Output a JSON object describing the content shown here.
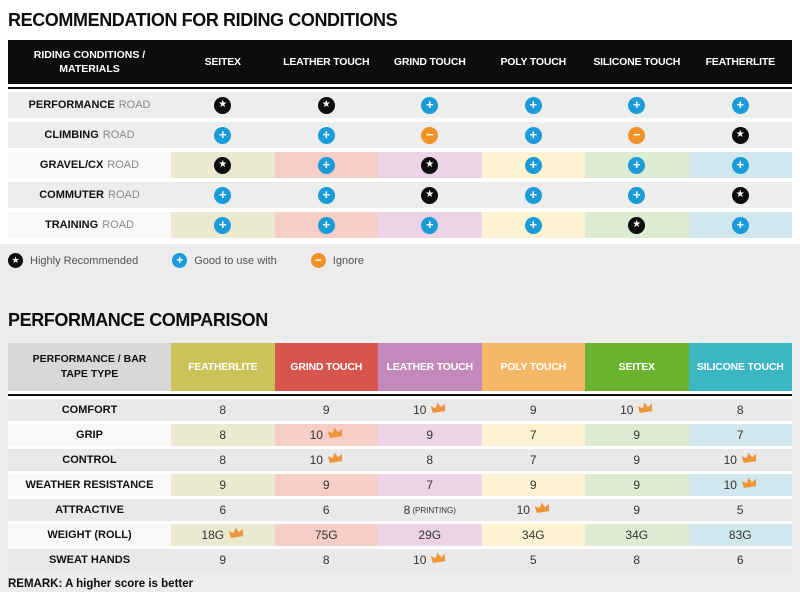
{
  "titles": {
    "section1": "RECOMMENDATION FOR RIDING CONDITIONS",
    "section2": "PERFORMANCE COMPARISON"
  },
  "legend": {
    "items": [
      {
        "icon": "star-badge",
        "label": "Highly Recommended"
      },
      {
        "icon": "plus-badge",
        "label": "Good to use with"
      },
      {
        "icon": "minus-badge",
        "label": "Ignore"
      }
    ]
  },
  "style": {
    "tint_palette": [
      "#ebe9cf",
      "#f6cec7",
      "#edd3e8",
      "#fdf3d1",
      "#dbecd2",
      "#d0e8ed"
    ],
    "tinted_label_bg": "#f8f8f8",
    "riding_gray_row_bg": "#ededed",
    "perf_gray_row_bg": "#e9e9e9",
    "perf_header_colors": [
      "#cbc258",
      "#d6554c",
      "#c389bb",
      "#f6b766",
      "#6bb32e",
      "#3bb6c3"
    ],
    "badge_colors": {
      "star": "#0d0d0d",
      "plus": "#1b9cd8",
      "minus": "#ef9227"
    },
    "crown_color": "#f0943c",
    "riding_tinted_rows": [
      2,
      4
    ],
    "perf_tinted_rows": [
      1,
      3,
      5
    ]
  },
  "chart_data": [
    {
      "type": "table",
      "title": "RECOMMENDATION FOR RIDING CONDITIONS",
      "corner_label": "RIDING CONDITIONS / MATERIALS",
      "columns": [
        "SEITEX",
        "LEATHER TOUCH",
        "GRIND TOUCH",
        "POLY TOUCH",
        "SILICONE TOUCH",
        "FEATHERLITE"
      ],
      "value_legend": {
        "star": "Highly Recommended",
        "plus": "Good to use with",
        "minus": "Ignore"
      },
      "rows": [
        {
          "label": "PERFORMANCE",
          "label_suffix": "ROAD",
          "values": [
            "star",
            "star",
            "plus",
            "plus",
            "plus",
            "plus"
          ]
        },
        {
          "label": "CLIMBING",
          "label_suffix": "ROAD",
          "values": [
            "plus",
            "plus",
            "minus",
            "plus",
            "minus",
            "star"
          ]
        },
        {
          "label": "GRAVEL/CX",
          "label_suffix": "ROAD",
          "values": [
            "star",
            "plus",
            "star",
            "plus",
            "plus",
            "plus"
          ]
        },
        {
          "label": "COMMUTER",
          "label_suffix": "ROAD",
          "values": [
            "plus",
            "plus",
            "star",
            "plus",
            "plus",
            "star"
          ]
        },
        {
          "label": "TRAINING",
          "label_suffix": "ROAD",
          "values": [
            "plus",
            "plus",
            "plus",
            "plus",
            "star",
            "plus"
          ]
        }
      ]
    },
    {
      "type": "table",
      "title": "PERFORMANCE COMPARISON",
      "corner_label": "PERFORMANCE / BAR TAPE TYPE",
      "columns": [
        "FEATHERLITE",
        "GRIND TOUCH",
        "LEATHER TOUCH",
        "POLY TOUCH",
        "SEITEX",
        "SILICONE TOUCH"
      ],
      "rows": [
        {
          "label": "COMFORT",
          "values": [
            "8",
            "9",
            "10",
            "9",
            "10",
            "8"
          ],
          "crowns": [
            2,
            4
          ]
        },
        {
          "label": "GRIP",
          "values": [
            "8",
            "10",
            "9",
            "7",
            "9",
            "7"
          ],
          "crowns": [
            1
          ]
        },
        {
          "label": "CONTROL",
          "values": [
            "8",
            "10",
            "8",
            "7",
            "9",
            "10"
          ],
          "crowns": [
            1,
            5
          ]
        },
        {
          "label": "WEATHER RESISTANCE",
          "values": [
            "9",
            "9",
            "7",
            "9",
            "9",
            "10"
          ],
          "crowns": [
            5
          ]
        },
        {
          "label": "ATTRACTIVE",
          "values": [
            "6",
            "6",
            "8",
            "10",
            "9",
            "5"
          ],
          "crowns": [
            3
          ],
          "suffixes": {
            "2": "(PRINTING)"
          }
        },
        {
          "label": "WEIGHT (ROLL)",
          "values": [
            "18G",
            "75G",
            "29G",
            "34G",
            "34G",
            "83G"
          ],
          "crowns": [
            0
          ]
        },
        {
          "label": "SWEAT HANDS",
          "values": [
            "9",
            "8",
            "10",
            "5",
            "8",
            "6"
          ],
          "crowns": [
            2
          ]
        }
      ],
      "footnote": "REMARK: A higher score is better"
    }
  ]
}
